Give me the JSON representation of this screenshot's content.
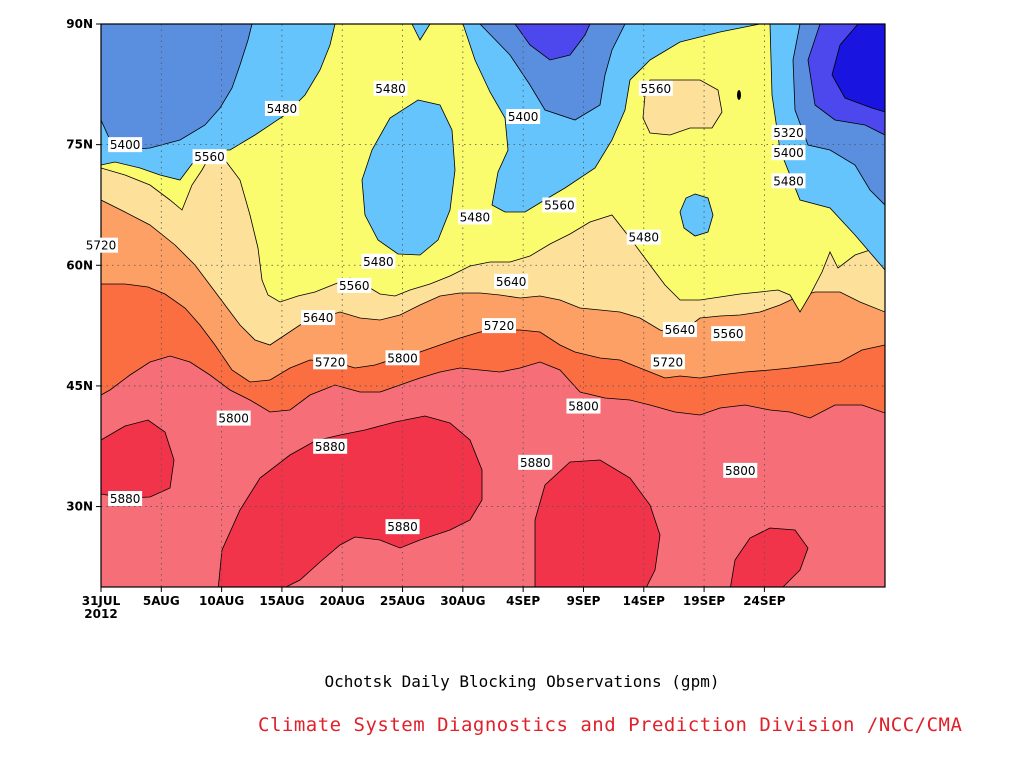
{
  "chart_data": {
    "type": "heatmap",
    "title": "Ochotsk Daily Blocking Observations (gpm)",
    "x_tick_labels": [
      "31JUL",
      "5AUG",
      "10AUG",
      "15AUG",
      "20AUG",
      "25AUG",
      "30AUG",
      "4SEP",
      "9SEP",
      "14SEP",
      "19SEP",
      "24SEP"
    ],
    "x_year_label": "2012",
    "y_tick_labels": [
      "90N",
      "75N",
      "60N",
      "45N",
      "30N"
    ],
    "y_ticks": [
      90,
      75,
      60,
      45,
      30
    ],
    "ylim": [
      20,
      90
    ],
    "xlim": [
      "2012-07-31",
      "2012-10-04"
    ],
    "grid": true,
    "contour_levels": [
      5320,
      5400,
      5480,
      5560,
      5640,
      5720,
      5800,
      5880
    ],
    "colors": {
      "below_5320": "#1a14e0",
      "5320_5400": "#4d48ee",
      "5400_5480": "#5a8fe0",
      "5480_5560": "#64c4fb",
      "5560_5640": "#fbfb6e",
      "5640_5720": "#fde19a",
      "5720_5800": "#fca066",
      "5800_5880": "#fb6e42",
      "above_5880": "#f56e78",
      "peak": "#f2344a"
    },
    "contour_labels": [
      {
        "text": "5400",
        "date": "2012-08-02",
        "lat": 75
      },
      {
        "text": "5560",
        "date": "2012-08-09",
        "lat": 73.5
      },
      {
        "text": "5480",
        "date": "2012-08-15",
        "lat": 79.5
      },
      {
        "text": "5480",
        "date": "2012-08-24",
        "lat": 82
      },
      {
        "text": "5400",
        "date": "2012-09-04",
        "lat": 78.5
      },
      {
        "text": "5560",
        "date": "2012-09-15",
        "lat": 82
      },
      {
        "text": "5320",
        "date": "2012-09-26",
        "lat": 76.5
      },
      {
        "text": "5400",
        "date": "2012-09-26",
        "lat": 74
      },
      {
        "text": "5480",
        "date": "2012-09-26",
        "lat": 70.5
      },
      {
        "text": "5720",
        "date": "2012-07-31",
        "lat": 62.5
      },
      {
        "text": "5480",
        "date": "2012-08-31",
        "lat": 66
      },
      {
        "text": "5560",
        "date": "2012-09-07",
        "lat": 67.5
      },
      {
        "text": "5480",
        "date": "2012-09-14",
        "lat": 63.5
      },
      {
        "text": "5480",
        "date": "2012-08-23",
        "lat": 60.5
      },
      {
        "text": "5560",
        "date": "2012-08-21",
        "lat": 57.5
      },
      {
        "text": "5640",
        "date": "2012-09-03",
        "lat": 58
      },
      {
        "text": "5640",
        "date": "2012-08-18",
        "lat": 53.5
      },
      {
        "text": "5720",
        "date": "2012-09-02",
        "lat": 52.5
      },
      {
        "text": "5640",
        "date": "2012-09-17",
        "lat": 52
      },
      {
        "text": "5560",
        "date": "2012-09-21",
        "lat": 51.5
      },
      {
        "text": "5720",
        "date": "2012-08-19",
        "lat": 48
      },
      {
        "text": "5800",
        "date": "2012-08-25",
        "lat": 48.5
      },
      {
        "text": "5720",
        "date": "2012-09-16",
        "lat": 48
      },
      {
        "text": "5800",
        "date": "2012-08-11",
        "lat": 41
      },
      {
        "text": "5800",
        "date": "2012-09-09",
        "lat": 42.5
      },
      {
        "text": "5800",
        "date": "2012-09-22",
        "lat": 34.5
      },
      {
        "text": "5880",
        "date": "2012-08-19",
        "lat": 37.5
      },
      {
        "text": "5880",
        "date": "2012-09-05",
        "lat": 35.5
      },
      {
        "text": "5880",
        "date": "2012-08-02",
        "lat": 31
      },
      {
        "text": "5880",
        "date": "2012-08-25",
        "lat": 27.5
      }
    ]
  },
  "footer": {
    "credit": "Climate System Diagnostics and Prediction Division /NCC/CMA"
  }
}
